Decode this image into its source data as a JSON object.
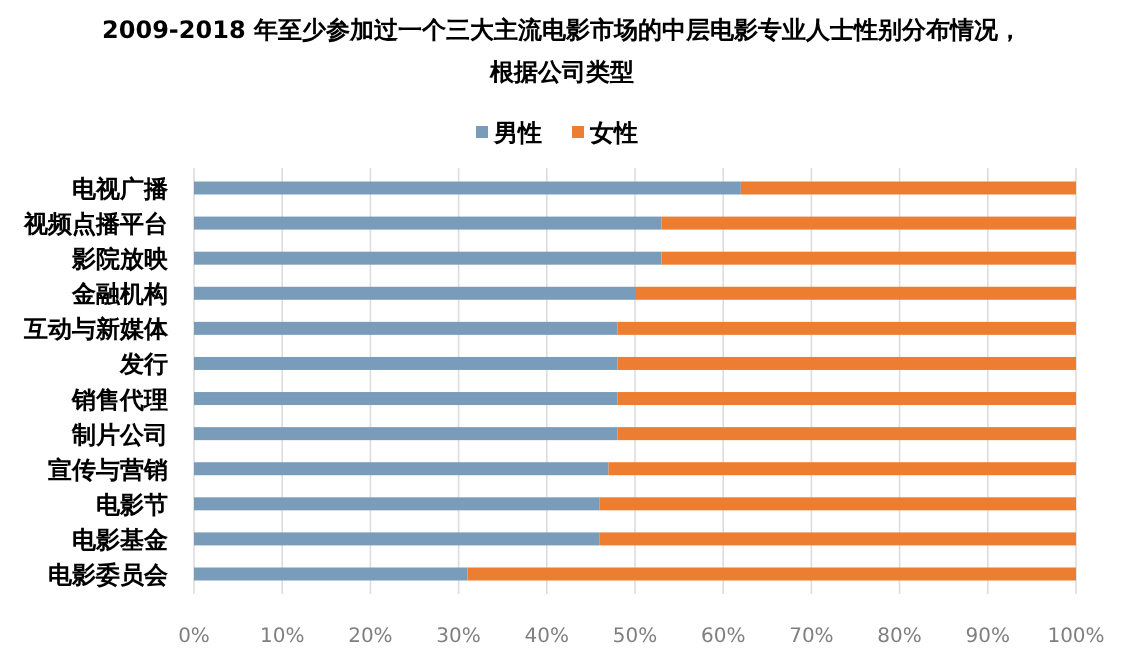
{
  "chart_data": {
    "type": "bar",
    "orientation": "horizontal",
    "stacked": true,
    "title": "2009-2018 年至少参加过一个三大主流电影市场的中层电影专业人士性别分布情况，",
    "subtitle": "根据公司类型",
    "categories": [
      "电视广播",
      "视频点播平台",
      "影院放映",
      "金融机构",
      "互动与新媒体",
      "发行",
      "销售代理",
      "制片公司",
      "宣传与营销",
      "电影节",
      "电影基金",
      "电影委员会"
    ],
    "series": [
      {
        "name": "男性",
        "color": "#7a9cbb",
        "values": [
          62,
          53,
          53,
          50,
          48,
          48,
          48,
          48,
          47,
          46,
          46,
          31
        ]
      },
      {
        "name": "女性",
        "color": "#ed7d31",
        "values": [
          38,
          47,
          47,
          50,
          52,
          52,
          52,
          52,
          53,
          54,
          54,
          69
        ]
      }
    ],
    "xlim": [
      0,
      100
    ],
    "xticks": [
      {
        "value": 0,
        "label": "0%"
      },
      {
        "value": 10,
        "label": "10%"
      },
      {
        "value": 20,
        "label": "20%"
      },
      {
        "value": 30,
        "label": "30%"
      },
      {
        "value": 40,
        "label": "40%"
      },
      {
        "value": 50,
        "label": "50%"
      },
      {
        "value": 60,
        "label": "60%"
      },
      {
        "value": 70,
        "label": "70%"
      },
      {
        "value": 80,
        "label": "80%"
      },
      {
        "value": 90,
        "label": "90%"
      },
      {
        "value": 100,
        "label": "100%"
      }
    ],
    "grid": "x",
    "legend": "top"
  }
}
